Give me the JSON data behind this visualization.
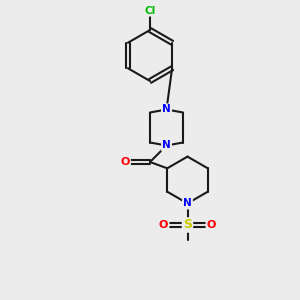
{
  "bg_color": "#ececec",
  "bond_color": "#1a1a1a",
  "n_color": "#0000ff",
  "o_color": "#ff0000",
  "s_color": "#cccc00",
  "cl_color": "#00bb00",
  "line_width": 1.5,
  "fig_size": [
    3.0,
    3.0
  ],
  "dpi": 100,
  "xlim": [
    0,
    10
  ],
  "ylim": [
    0,
    10
  ]
}
